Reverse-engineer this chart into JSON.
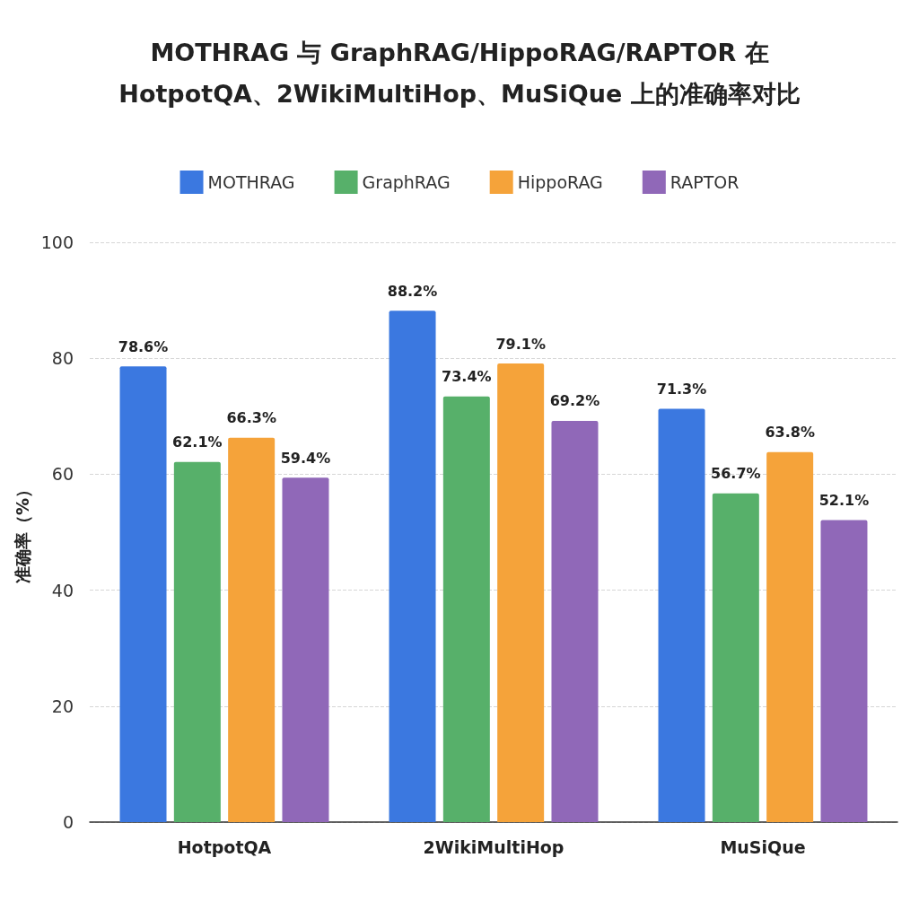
{
  "chart_data": {
    "type": "bar",
    "title": "MOTHRAG 与 GraphRAG/HippoRAG/RAPTOR 在\nHotpotQA、2WikiMultiHop、MuSiQue 上的准确率对比",
    "ylabel": "准确率（%）",
    "categories": [
      "HotpotQA",
      "2WikiMultiHop",
      "MuSiQue"
    ],
    "series": [
      {
        "name": "MOTHRAG",
        "color": "#3b78e0",
        "values": [
          78.6,
          88.2,
          71.3
        ],
        "value_labels": [
          "78.6%",
          "88.2%",
          "71.3%"
        ]
      },
      {
        "name": "GraphRAG",
        "color": "#57b06a",
        "values": [
          62.1,
          73.4,
          56.7
        ],
        "value_labels": [
          "62.1%",
          "73.4%",
          "56.7%"
        ]
      },
      {
        "name": "HippoRAG",
        "color": "#f5a33a",
        "values": [
          66.3,
          79.1,
          63.8
        ],
        "value_labels": [
          "66.3%",
          "79.1%",
          "63.8%"
        ]
      },
      {
        "name": "RAPTOR",
        "color": "#9068b8",
        "values": [
          59.4,
          69.2,
          52.1
        ],
        "value_labels": [
          "59.4%",
          "69.2%",
          "52.1%"
        ]
      }
    ],
    "ylim": [
      0,
      100
    ],
    "yticks": [
      0,
      20,
      40,
      60,
      80,
      100
    ],
    "grid": "y",
    "legend": "top"
  }
}
